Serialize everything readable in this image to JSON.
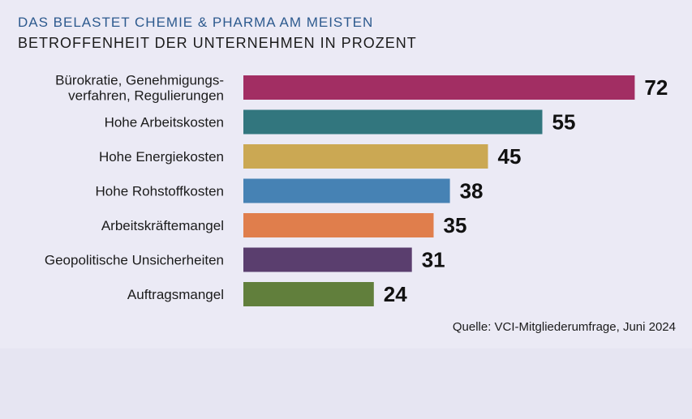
{
  "header": {
    "title": "DAS BELASTET CHEMIE & PHARMA AM MEISTEN",
    "subtitle": "BETROFFENHEIT DER UNTERNEHMEN IN PROZENT"
  },
  "source": "Quelle: VCI-Mitgliederumfrage, Juni 2024",
  "chart_data": {
    "type": "bar",
    "orientation": "horizontal",
    "categories": [
      "Bürokratie, Genehmigungs-\nverfahren, Regulierungen",
      "Hohe Arbeitskosten",
      "Hohe Energiekosten",
      "Hohe Rohstoffkosten",
      "Arbeitskräftemangel",
      "Geopolitische Unsicherheiten",
      "Auftragsmangel"
    ],
    "values": [
      72,
      55,
      45,
      38,
      35,
      31,
      24
    ],
    "colors": [
      "#a22e63",
      "#32767e",
      "#cba853",
      "#4682b4",
      "#e07e4c",
      "#5a3e6e",
      "#617f3c"
    ],
    "xlim": [
      0,
      100
    ],
    "grid": false,
    "data_labels": true
  }
}
